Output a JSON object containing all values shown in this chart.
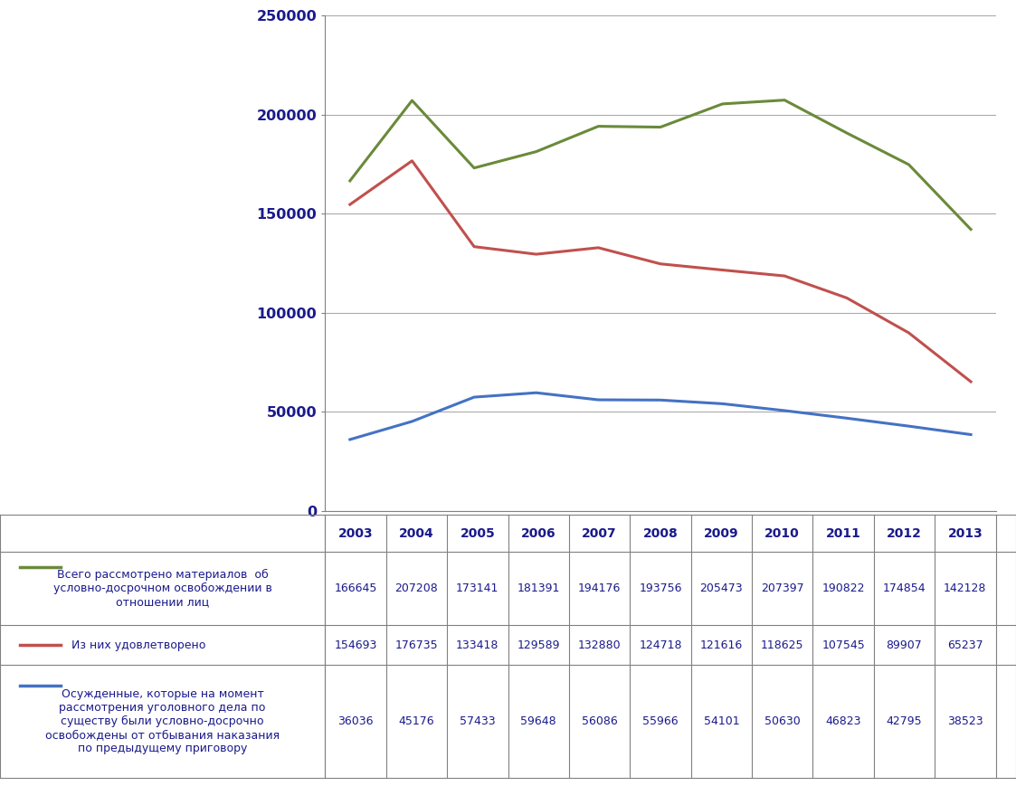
{
  "years": [
    2003,
    2004,
    2005,
    2006,
    2007,
    2008,
    2009,
    2010,
    2011,
    2012,
    2013
  ],
  "series1": [
    166645,
    207208,
    173141,
    181391,
    194176,
    193756,
    205473,
    207397,
    190822,
    174854,
    142128
  ],
  "series2": [
    154693,
    176735,
    133418,
    129589,
    132880,
    124718,
    121616,
    118625,
    107545,
    89907,
    65237
  ],
  "series3": [
    36036,
    45176,
    57433,
    59648,
    56086,
    55966,
    54101,
    50630,
    46823,
    42795,
    38523
  ],
  "color1": "#6a8a3a",
  "color2": "#c0504d",
  "color3": "#4472c4",
  "label1": "Всего рассмотрено материалов  об\nусловно-досрочном освобождении в\nотношении лиц",
  "label2": "Из них удовлетворено",
  "label3": "Осужденные, которые на момент\nрассмотрения уголовного дела по\nсуществу были условно-досрочно\nосвобождены от отбывания наказания\nпо предыдущему приговору",
  "ylim_min": 0,
  "ylim_max": 250000,
  "yticks": [
    0,
    50000,
    100000,
    150000,
    200000,
    250000
  ],
  "linewidth": 2.2,
  "background_color": "#ffffff",
  "grid_color": "#aaaaaa",
  "text_color": "#1a1a8c",
  "border_color": "#808080",
  "fig_width": 11.23,
  "fig_height": 8.69,
  "dpi": 100
}
